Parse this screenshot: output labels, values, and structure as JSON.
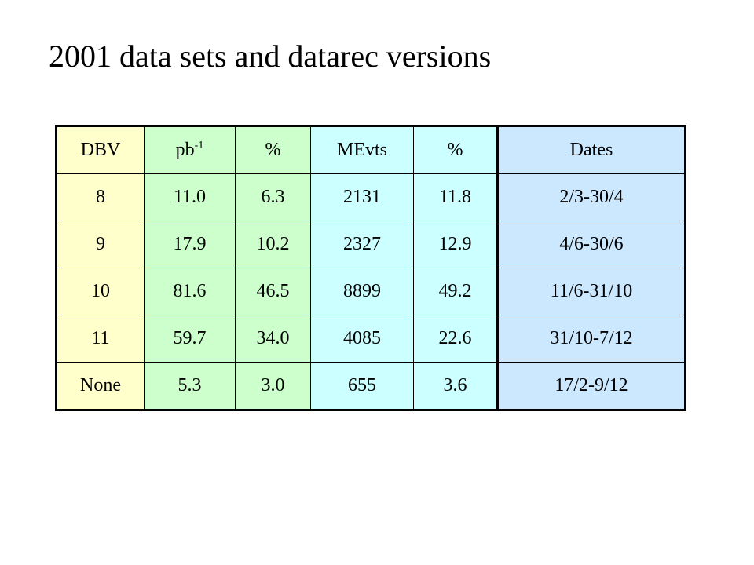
{
  "title": "2001 data sets and datarec versions",
  "table": {
    "header": [
      "DBV",
      {
        "text": "pb",
        "sup": "-1"
      },
      "%",
      "MEvts",
      "%",
      "Dates"
    ],
    "rows": [
      [
        "8",
        "11.0",
        "6.3",
        "2131",
        "11.8",
        "2/3-30/4"
      ],
      [
        "9",
        "17.9",
        "10.2",
        "2327",
        "12.9",
        "4/6-30/6"
      ],
      [
        "10",
        "81.6",
        "46.5",
        "8899",
        "49.2",
        "11/6-31/10"
      ],
      [
        "11",
        "59.7",
        "34.0",
        "4085",
        "22.6",
        "31/10-7/12"
      ],
      [
        "None",
        "5.3",
        "3.0",
        "655",
        "3.6",
        "17/2-9/12"
      ]
    ]
  }
}
